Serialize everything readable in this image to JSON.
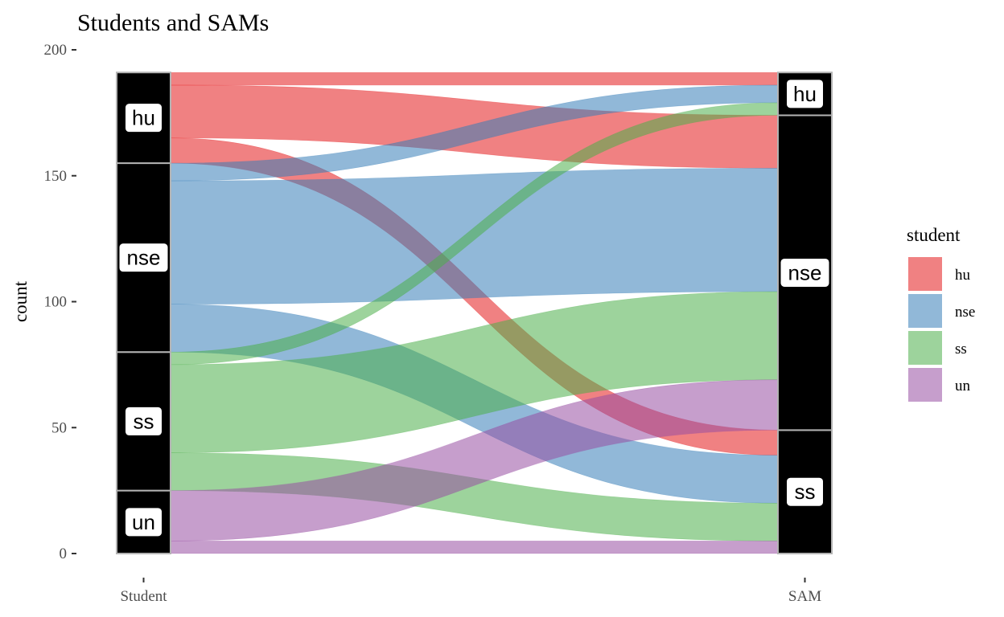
{
  "chart_data": {
    "type": "alluvial",
    "title": "Students and SAMs",
    "ylabel": "count",
    "xlabel": "",
    "axes": [
      "Student",
      "SAM"
    ],
    "ylim": [
      0,
      200
    ],
    "yticks": [
      0,
      50,
      100,
      150,
      200
    ],
    "grid": false,
    "legend": {
      "title": "student",
      "position": "right"
    },
    "categories": [
      "hu",
      "nse",
      "ss",
      "un"
    ],
    "category_order": [
      "un",
      "ss",
      "nse",
      "hu"
    ],
    "colors": {
      "hu": "#E41A1C",
      "nse": "#377EB8",
      "ss": "#4DAF4A",
      "un": "#984EA3"
    },
    "fill_opacity": 0.55,
    "flows": [
      {
        "student": "hu",
        "sam": "hu",
        "value": 5
      },
      {
        "student": "hu",
        "sam": "nse",
        "value": 21
      },
      {
        "student": "hu",
        "sam": "ss",
        "value": 10
      },
      {
        "student": "nse",
        "sam": "hu",
        "value": 7
      },
      {
        "student": "nse",
        "sam": "nse",
        "value": 49
      },
      {
        "student": "nse",
        "sam": "ss",
        "value": 19
      },
      {
        "student": "ss",
        "sam": "hu",
        "value": 5
      },
      {
        "student": "ss",
        "sam": "nse",
        "value": 35
      },
      {
        "student": "ss",
        "sam": "ss",
        "value": 15
      },
      {
        "student": "un",
        "sam": "nse",
        "value": 20
      },
      {
        "student": "un",
        "sam": "ss",
        "value": 5
      }
    ]
  }
}
